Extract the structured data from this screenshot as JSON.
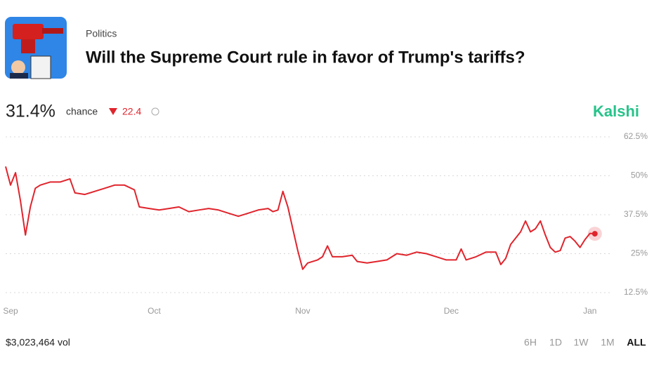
{
  "header": {
    "category": "Politics",
    "title": "Will the Supreme Court rule in favor of Trump's tariffs?"
  },
  "stats": {
    "chance": "31.4%",
    "chance_label": "chance",
    "change": "22.4",
    "brand": "Kalshi"
  },
  "chart_data": {
    "type": "line",
    "color": "#e0242c",
    "grid": true,
    "x": [
      -1,
      0,
      1,
      2,
      3,
      4,
      5,
      6,
      8,
      10,
      12,
      13,
      15,
      17,
      19,
      21,
      23,
      25,
      26,
      28,
      30,
      32,
      34,
      36,
      38,
      40,
      42,
      44,
      46,
      48,
      50,
      52,
      53,
      54,
      55,
      56,
      57,
      58,
      59,
      60,
      62,
      63,
      64,
      65,
      67,
      69,
      70,
      72,
      74,
      76,
      78,
      80,
      82,
      84,
      86,
      88,
      90,
      91,
      92,
      94,
      96,
      98,
      99,
      100,
      101,
      103,
      104,
      105,
      106,
      107,
      108,
      109,
      110,
      111,
      112,
      113,
      114,
      115,
      116,
      117,
      118
    ],
    "values": [
      53,
      47,
      51,
      42,
      31,
      40,
      46,
      47,
      48,
      48,
      49,
      44.5,
      44,
      45,
      46,
      47,
      47,
      45.5,
      40,
      39.5,
      39,
      39.5,
      40,
      38.5,
      39,
      39.5,
      39,
      38,
      37,
      38,
      39,
      39.5,
      38.5,
      39,
      45,
      40,
      33,
      26,
      20,
      22,
      23,
      24,
      27.5,
      24,
      24,
      24.5,
      22.5,
      22,
      22.5,
      23,
      25,
      24.5,
      25.5,
      25,
      24,
      23,
      23,
      26.5,
      23,
      24,
      25.5,
      25.5,
      21.5,
      23.5,
      28,
      32,
      35.5,
      32,
      33,
      35.5,
      31,
      27,
      25.5,
      26,
      30,
      30.5,
      29,
      27,
      29.5,
      31.5,
      31.4
    ],
    "xlim": [
      -1,
      122
    ],
    "ylim": [
      12.5,
      62.5
    ],
    "xticks": [
      {
        "value": 0,
        "label": "Sep"
      },
      {
        "value": 29,
        "label": "Oct"
      },
      {
        "value": 59,
        "label": "Nov"
      },
      {
        "value": 89,
        "label": "Dec"
      },
      {
        "value": 117,
        "label": "Jan"
      }
    ],
    "yticks": [
      {
        "value": 12.5,
        "label": "12.5%"
      },
      {
        "value": 25,
        "label": "25%"
      },
      {
        "value": 37.5,
        "label": "37.5%"
      },
      {
        "value": 50,
        "label": "50%"
      },
      {
        "value": 62.5,
        "label": "62.5%"
      }
    ]
  },
  "footer": {
    "volume": "$3,023,464 vol",
    "ranges": [
      "6H",
      "1D",
      "1W",
      "1M",
      "ALL"
    ]
  }
}
